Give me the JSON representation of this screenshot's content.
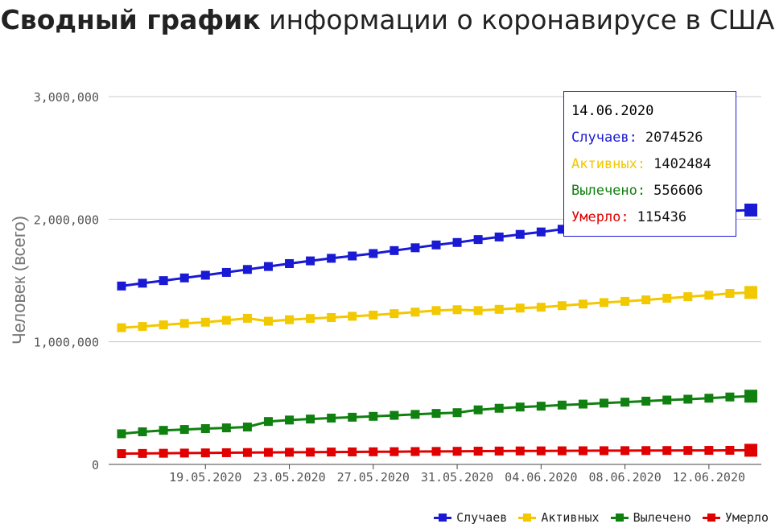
{
  "title": {
    "bold": "Сводный график",
    "rest": " информации о коронавирусе в США"
  },
  "tooltip": {
    "date": "14.06.2020",
    "rows": [
      {
        "label": "Случаев:",
        "value": "2074526",
        "color": "#1a1ad4"
      },
      {
        "label": "Активных:",
        "value": "1402484",
        "color": "#f2c800"
      },
      {
        "label": "Вылечено:",
        "value": "556606",
        "color": "#108010"
      },
      {
        "label": "Умерло:",
        "value": "115436",
        "color": "#e00000"
      }
    ]
  },
  "chart_data": {
    "type": "line",
    "ylabel": "Человек (всего)",
    "xlabel": "",
    "ylim": [
      0,
      3000000
    ],
    "yticks": [
      "0",
      "1,000,000",
      "2,000,000",
      "3,000,000"
    ],
    "xtick_labels": [
      "19.05.2020",
      "23.05.2020",
      "27.05.2020",
      "31.05.2020",
      "04.06.2020",
      "08.06.2020",
      "12.06.2020"
    ],
    "x": [
      "15.05.2020",
      "16.05.2020",
      "17.05.2020",
      "18.05.2020",
      "19.05.2020",
      "20.05.2020",
      "21.05.2020",
      "22.05.2020",
      "23.05.2020",
      "24.05.2020",
      "25.05.2020",
      "26.05.2020",
      "27.05.2020",
      "28.05.2020",
      "29.05.2020",
      "30.05.2020",
      "31.05.2020",
      "01.06.2020",
      "02.06.2020",
      "03.06.2020",
      "04.06.2020",
      "05.06.2020",
      "06.06.2020",
      "07.06.2020",
      "08.06.2020",
      "09.06.2020",
      "10.06.2020",
      "11.06.2020",
      "12.06.2020",
      "13.06.2020",
      "14.06.2020"
    ],
    "grid": true,
    "legend_position": "bottom-right",
    "series": [
      {
        "name": "Случаев",
        "color": "#1a1ad4",
        "values": [
          1455000,
          1478000,
          1499000,
          1521000,
          1543000,
          1566000,
          1590000,
          1614000,
          1638000,
          1660000,
          1681000,
          1700000,
          1720000,
          1744000,
          1767000,
          1790000,
          1810000,
          1834000,
          1855000,
          1876000,
          1896000,
          1918000,
          1940000,
          1960000,
          1980000,
          2000000,
          2020000,
          2040000,
          2058000,
          2068000,
          2074526
        ]
      },
      {
        "name": "Активных",
        "color": "#f2c800",
        "values": [
          1115000,
          1125000,
          1138000,
          1150000,
          1160000,
          1175000,
          1192000,
          1168000,
          1180000,
          1190000,
          1198000,
          1208000,
          1218000,
          1230000,
          1242000,
          1255000,
          1262000,
          1255000,
          1265000,
          1275000,
          1282000,
          1295000,
          1308000,
          1320000,
          1330000,
          1342000,
          1355000,
          1368000,
          1380000,
          1395000,
          1402484
        ]
      },
      {
        "name": "Вылечено",
        "color": "#108010",
        "values": [
          250000,
          266000,
          278000,
          285000,
          292000,
          298000,
          305000,
          350000,
          362000,
          370000,
          378000,
          385000,
          392000,
          400000,
          408000,
          416000,
          422000,
          445000,
          458000,
          468000,
          475000,
          484000,
          492000,
          500000,
          508000,
          516000,
          525000,
          532000,
          540000,
          550000,
          556606
        ]
      },
      {
        "name": "Умерло",
        "color": "#e00000",
        "values": [
          88000,
          89500,
          91000,
          92500,
          94000,
          95500,
          97000,
          98000,
          99000,
          100000,
          101000,
          102000,
          103000,
          104000,
          105000,
          106000,
          107000,
          108000,
          109000,
          110000,
          110500,
          111000,
          111500,
          112000,
          112500,
          113000,
          113500,
          114000,
          114500,
          115000,
          115436
        ]
      }
    ]
  }
}
